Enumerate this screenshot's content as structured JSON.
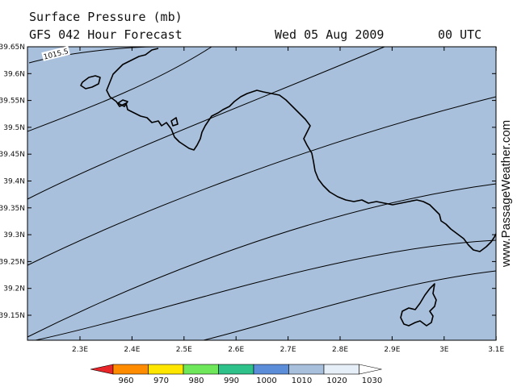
{
  "header": {
    "title": "Surface Pressure (mb)",
    "model": "GFS 042 Hour Forecast",
    "date": "Wed 05 Aug 2009",
    "time": "00 UTC"
  },
  "watermark": "www.PassageWeather.com",
  "map": {
    "ocean_color": "#a8c0dc",
    "isobar_label": "1015.5",
    "lat_ticks": [
      "39.65N",
      "39.6N",
      "39.55N",
      "39.5N",
      "39.45N",
      "39.4N",
      "39.35N",
      "39.3N",
      "39.25N",
      "39.2N",
      "39.15N"
    ],
    "lon_ticks": [
      "2.3E",
      "2.4E",
      "2.5E",
      "2.6E",
      "2.7E",
      "2.8E",
      "2.9E",
      "3E",
      "3.1E"
    ]
  },
  "legend": {
    "labels": [
      "960",
      "970",
      "980",
      "990",
      "1000",
      "1010",
      "1020",
      "1030"
    ],
    "colors": [
      "#e8262a",
      "#ff8c00",
      "#ffe600",
      "#6ee85a",
      "#2ec28a",
      "#5b8dd9",
      "#a8c0dc",
      "#e6eef7"
    ]
  }
}
